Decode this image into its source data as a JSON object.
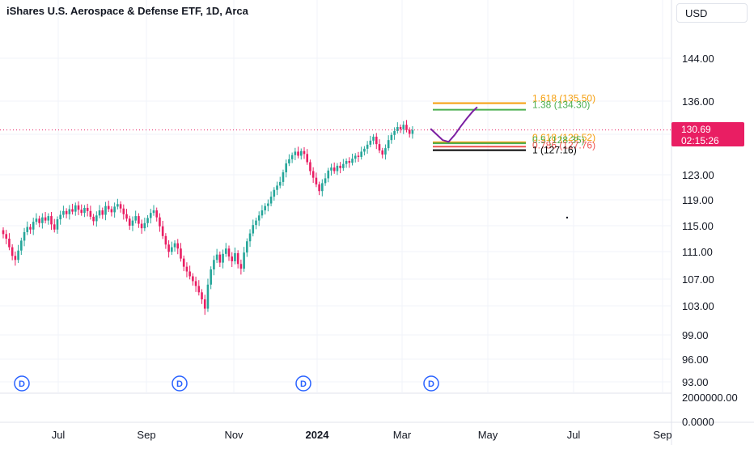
{
  "header": {
    "title": "iShares U.S. Aerospace & Defense ETF, 1D, Arca",
    "currency": "USD"
  },
  "last_price": {
    "value": "130.69",
    "countdown": "02:15:26"
  },
  "colors": {
    "up": "#26a69a",
    "down": "#e91e63",
    "fib_orange": "#f59e0b",
    "fib_green": "#4caf50",
    "fib_red": "#ef5350",
    "fib_black": "#000000",
    "projection": "#7b1fa2",
    "dividend": "#2962ff"
  },
  "chart_data": {
    "type": "candlestick",
    "title": "iShares U.S. Aerospace & Defense ETF, 1D, Arca",
    "y_axis": {
      "price_ticks": [
        "144.00",
        "136.00",
        "131.00",
        "123.00",
        "119.00",
        "115.00",
        "111.00",
        "107.00",
        "103.00",
        "99.00",
        "96.00",
        "93.00"
      ],
      "volume_ticks": [
        "2000000.00",
        "0.0000"
      ],
      "scale": "log"
    },
    "x_axis": {
      "ticks": [
        "Jul",
        "Sep",
        "Nov",
        "2024",
        "Mar",
        "May",
        "Jul",
        "Sep"
      ],
      "bold": [
        "2024"
      ]
    },
    "series_close": [
      113.5,
      112.8,
      111.5,
      110.2,
      109.6,
      111.0,
      112.5,
      113.8,
      114.6,
      114.2,
      115.4,
      115.9,
      115.2,
      116.1,
      115.6,
      116.3,
      115.0,
      114.2,
      115.8,
      116.5,
      117.1,
      116.6,
      117.4,
      117.0,
      118.0,
      117.3,
      116.8,
      117.6,
      117.1,
      116.2,
      115.5,
      116.4,
      117.2,
      116.5,
      117.9,
      117.4,
      116.9,
      117.8,
      118.2,
      117.5,
      116.6,
      115.9,
      114.8,
      115.6,
      116.3,
      115.1,
      114.4,
      115.2,
      116.0,
      116.8,
      117.2,
      116.1,
      114.7,
      113.2,
      111.9,
      110.8,
      111.5,
      112.1,
      111.3,
      109.8,
      108.6,
      107.9,
      107.2,
      106.5,
      105.8,
      104.9,
      103.9,
      102.6,
      106.0,
      108.2,
      109.6,
      110.4,
      109.2,
      110.5,
      111.3,
      110.1,
      109.4,
      110.6,
      109.0,
      108.3,
      110.7,
      112.4,
      113.6,
      114.9,
      115.6,
      116.4,
      117.2,
      117.9,
      118.3,
      119.4,
      120.5,
      121.2,
      121.8,
      123.4,
      124.9,
      125.6,
      126.3,
      126.9,
      126.2,
      127.0,
      126.5,
      125.1,
      123.6,
      122.5,
      121.4,
      120.3,
      121.6,
      122.4,
      123.7,
      124.2,
      123.6,
      124.5,
      124.1,
      124.8,
      125.3,
      125.0,
      125.7,
      126.2,
      126.0,
      126.9,
      127.4,
      128.1,
      128.8,
      129.5,
      128.2,
      127.1,
      126.4,
      127.5,
      128.9,
      129.8,
      130.5,
      131.2,
      130.8,
      131.6,
      130.7,
      130.0,
      130.69
    ],
    "projection_path": [
      [
        142,
        130.9
      ],
      [
        144,
        129.9
      ],
      [
        146,
        128.9
      ],
      [
        148,
        128.6
      ],
      [
        150,
        129.8
      ],
      [
        152,
        131.3
      ],
      [
        154,
        132.7
      ],
      [
        156,
        134.0
      ],
      [
        157.5,
        134.8
      ]
    ],
    "fib_levels": [
      {
        "label": "1.618 (135.50)",
        "value": 135.5,
        "color": "#f59e0b"
      },
      {
        "label": "1.38 (134.30)",
        "value": 134.3,
        "color": "#4caf50"
      },
      {
        "label": "0.618 (128.52)",
        "value": 128.52,
        "color": "#f59e0b"
      },
      {
        "label": "0.5 (128.35)",
        "value": 128.35,
        "color": "#4caf50"
      },
      {
        "label": "0.786 (127.76)",
        "value": 127.76,
        "color": "#ef5350"
      },
      {
        "label": "1 (127.16)",
        "value": 127.16,
        "color": "#000000"
      }
    ],
    "dividend_marker": "D",
    "annotations": []
  }
}
